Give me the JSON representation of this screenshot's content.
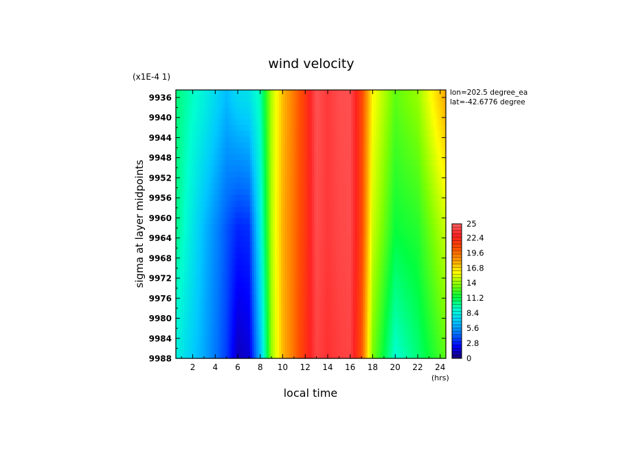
{
  "chart_data": {
    "type": "heatmap",
    "title": "wind velocity",
    "scale_note": "(x1E-4 1)",
    "xlabel": "local time",
    "xunits": "(hrs)",
    "ylabel": "sigma at layer midpoints",
    "info": [
      "lon=202.5 degree_ea",
      "lat=-42.6776 degree"
    ],
    "x_ticks": [
      "2",
      "4",
      "6",
      "8",
      "10",
      "12",
      "14",
      "16",
      "18",
      "20",
      "22",
      "24"
    ],
    "x_tick_values": [
      2,
      4,
      6,
      8,
      10,
      12,
      14,
      16,
      18,
      20,
      22,
      24
    ],
    "xlim": [
      0.5,
      24.5
    ],
    "y_ticks": [
      "9936",
      "9940",
      "9944",
      "9948",
      "9952",
      "9956",
      "9960",
      "9964",
      "9968",
      "9972",
      "9976",
      "9980",
      "9984",
      "9988"
    ],
    "y_tick_values": [
      9936,
      9940,
      9944,
      9948,
      9952,
      9956,
      9960,
      9964,
      9968,
      9972,
      9976,
      9980,
      9984,
      9988
    ],
    "ylim": [
      9934.5,
      9988
    ],
    "y_reversed": true,
    "colorbar": {
      "labels": [
        "25",
        "22.4",
        "19.6",
        "16.8",
        "14",
        "11.2",
        "8.4",
        "5.6",
        "2.8",
        "0"
      ],
      "label_values": [
        25,
        22.4,
        19.6,
        16.8,
        14,
        11.2,
        8.4,
        5.6,
        2.8,
        0
      ],
      "range": [
        0,
        25
      ],
      "colors": [
        "#1a0070",
        "#0000ff",
        "#0070ff",
        "#00c8ff",
        "#00ffd0",
        "#00ff40",
        "#80ff00",
        "#ffff00",
        "#ffa000",
        "#ff5000",
        "#ff2020",
        "#ff6060"
      ]
    },
    "x_grid": [
      0.5,
      3,
      5,
      6,
      7,
      8,
      9,
      10,
      11,
      12,
      13,
      14,
      15,
      16,
      17,
      18,
      20,
      22,
      24.5
    ],
    "y_grid": [
      9936,
      9962,
      9988
    ],
    "z": [
      [
        10.5,
        8.5,
        6.5,
        7.5,
        7.8,
        9.5,
        14.5,
        17.5,
        19.3,
        21.5,
        24.5,
        23.6,
        24.3,
        24.4,
        21,
        16,
        13,
        14,
        18
      ],
      [
        10.3,
        6.5,
        4.0,
        3.0,
        3.2,
        8.2,
        14.5,
        17.8,
        19.5,
        21.5,
        24.3,
        23.6,
        24.1,
        24.3,
        21,
        15,
        11.5,
        12,
        15
      ],
      [
        8.5,
        6.0,
        3.5,
        1.2,
        1.6,
        6.5,
        14.0,
        17.6,
        19.5,
        21.8,
        24.0,
        23.3,
        23.8,
        24.0,
        20.5,
        13.5,
        9.0,
        10.5,
        13
      ]
    ]
  }
}
